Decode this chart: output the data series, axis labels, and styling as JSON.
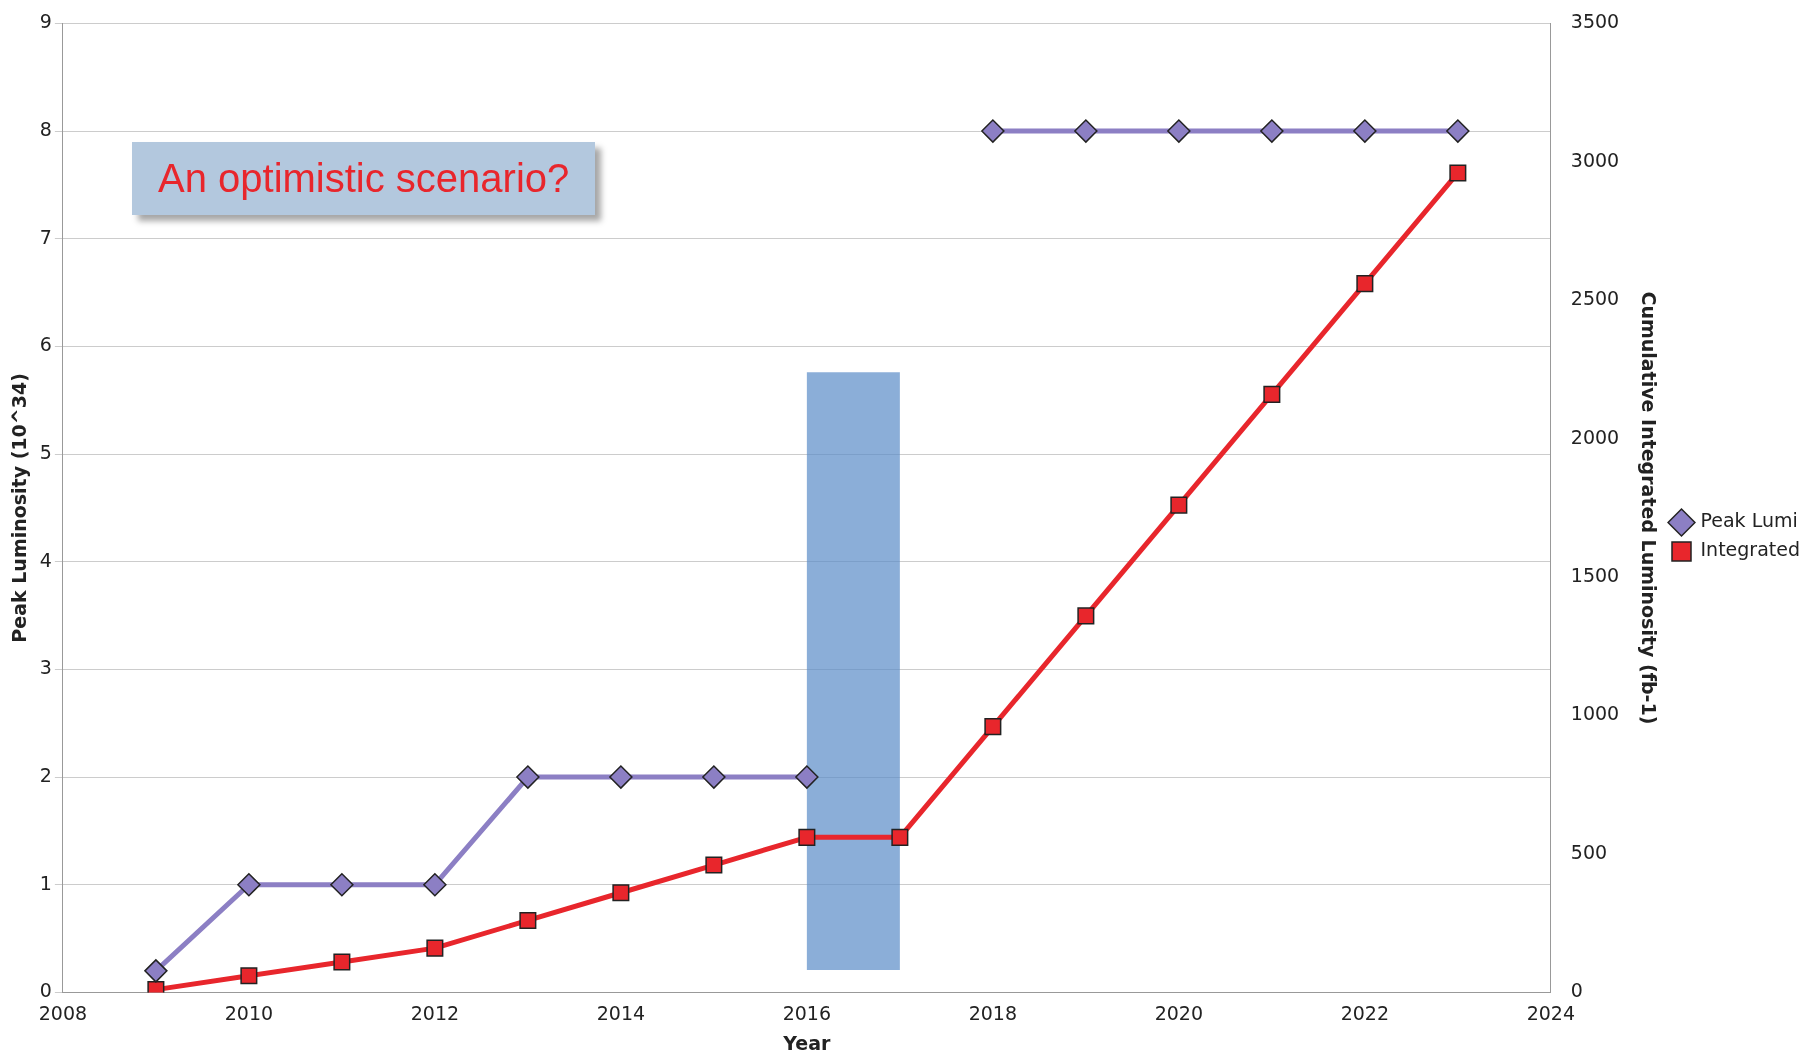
{
  "chart_data": {
    "type": "line",
    "xlabel": "Year",
    "ylabel": "Peak Luminosity (10^34)",
    "y2label": "Cumulative Integrated Luminosity (fb-1)",
    "x": [
      2009,
      2010,
      2011,
      2012,
      2013,
      2014,
      2015,
      2016,
      2017,
      2018,
      2019,
      2020,
      2021,
      2022,
      2023
    ],
    "series": [
      {
        "name": "Peak Lumi",
        "color": "#8c7fc4",
        "marker": "diamond",
        "values": [
          0.2,
          1,
          1,
          1,
          2,
          2,
          2,
          2,
          null,
          8,
          8,
          8,
          8,
          8,
          8
        ]
      },
      {
        "name": "Integrated",
        "color": "#e8262c",
        "marker": "square",
        "axis": "y2",
        "values": [
          10,
          60,
          110,
          160,
          260,
          360,
          460,
          560,
          560,
          960,
          1360,
          1760,
          2160,
          2560,
          2960
        ]
      }
    ],
    "xlim": [
      2008,
      2024
    ],
    "xticks": [
      2008,
      2010,
      2012,
      2014,
      2016,
      2018,
      2020,
      2022,
      2024
    ],
    "ylim": [
      0,
      9
    ],
    "yticks": [
      0,
      1,
      2,
      3,
      4,
      5,
      6,
      7,
      8,
      9
    ],
    "y2lim": [
      0,
      3500
    ],
    "y2ticks": [
      0,
      500,
      1000,
      1500,
      2000,
      2500,
      3000,
      3500
    ],
    "bands": [
      {
        "axis": "x",
        "from": 2016,
        "to": 2017,
        "color": "#5a8cc8"
      }
    ],
    "annotations": [
      "An optimistic scenario?"
    ],
    "grid": "y",
    "legend": "right"
  }
}
